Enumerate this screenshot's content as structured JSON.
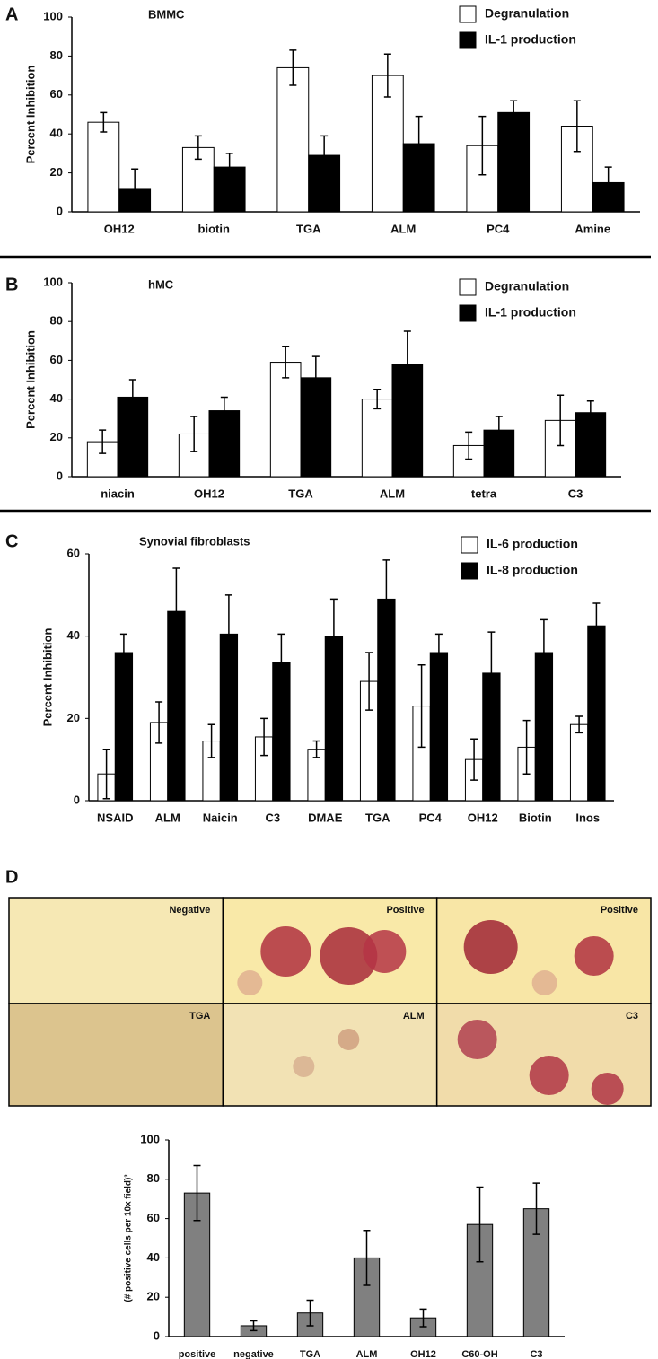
{
  "chart_data": [
    {
      "type": "bar",
      "panel": "A",
      "title": "BMMC",
      "ylabel": "Percent Inhibition",
      "categories": [
        "OH12",
        "biotin",
        "TGA",
        "ALM",
        "PC4",
        "Amine"
      ],
      "series": [
        {
          "name": "Degranulation",
          "color": "#ffffff",
          "values": [
            46,
            33,
            74,
            70,
            34,
            44
          ],
          "errors": [
            5,
            6,
            9,
            11,
            15,
            13
          ]
        },
        {
          "name": "IL-1 production",
          "color": "#000000",
          "values": [
            12,
            23,
            29,
            35,
            51,
            15
          ],
          "errors": [
            10,
            7,
            10,
            14,
            6,
            8
          ]
        }
      ],
      "ylim": [
        0,
        100
      ],
      "yticks": [
        0,
        20,
        40,
        60,
        80,
        100
      ],
      "grid": false,
      "legend": "upper right"
    },
    {
      "type": "bar",
      "panel": "B",
      "title": "hMC",
      "ylabel": "Percent Inhibition",
      "categories": [
        "niacin",
        "OH12",
        "TGA",
        "ALM",
        "tetra",
        "C3"
      ],
      "series": [
        {
          "name": "Degranulation",
          "color": "#ffffff",
          "values": [
            18,
            22,
            59,
            40,
            16,
            29
          ],
          "errors": [
            6,
            9,
            8,
            5,
            7,
            13
          ]
        },
        {
          "name": "IL-1 production",
          "color": "#000000",
          "values": [
            41,
            34,
            51,
            58,
            24,
            33
          ],
          "errors": [
            9,
            7,
            11,
            17,
            7,
            6
          ]
        }
      ],
      "ylim": [
        0,
        100
      ],
      "yticks": [
        0,
        20,
        40,
        60,
        80,
        100
      ],
      "grid": false,
      "legend": "upper right"
    },
    {
      "type": "bar",
      "panel": "C",
      "title": "Synovial fibroblasts",
      "ylabel": "Percent Inhibition",
      "categories": [
        "NSAID",
        "ALM",
        "Naicin",
        "C3",
        "DMAE",
        "TGA",
        "PC4",
        "OH12",
        "Biotin",
        "Inos"
      ],
      "series": [
        {
          "name": "IL-6 production",
          "color": "#ffffff",
          "values": [
            6.5,
            19,
            14.5,
            15.5,
            12.5,
            29,
            23,
            10,
            13,
            18.5
          ],
          "errors": [
            6,
            5,
            4,
            4.5,
            2,
            7,
            10,
            5,
            6.5,
            2
          ]
        },
        {
          "name": "IL-8 production",
          "color": "#000000",
          "values": [
            36,
            46,
            40.5,
            33.5,
            40,
            49,
            36,
            31,
            36,
            42.5
          ],
          "errors": [
            4.5,
            10.5,
            9.5,
            7,
            9,
            9.5,
            4.5,
            10,
            8,
            5.5
          ]
        }
      ],
      "ylim": [
        0,
        60
      ],
      "yticks": [
        0,
        20,
        40,
        60
      ],
      "grid": false,
      "legend": "upper right"
    },
    {
      "type": "bar",
      "panel": "D",
      "ylabel": "(# positive cells per 10x field)³",
      "categories": [
        "positive",
        "negative",
        "TGA",
        "ALM",
        "OH12",
        "C60-OH",
        "C3"
      ],
      "series": [
        {
          "color": "#808080",
          "values": [
            73,
            5.5,
            12,
            40,
            9.5,
            57,
            65
          ],
          "errors": [
            14,
            2.5,
            6.5,
            14,
            4.5,
            19,
            13
          ]
        }
      ],
      "ylim": [
        0,
        100
      ],
      "yticks": [
        0,
        20,
        40,
        60,
        80,
        100
      ],
      "grid": false
    }
  ],
  "panel_d_images": [
    "Negative",
    "Positive",
    "Positive",
    "TGA",
    "ALM",
    "C3"
  ]
}
